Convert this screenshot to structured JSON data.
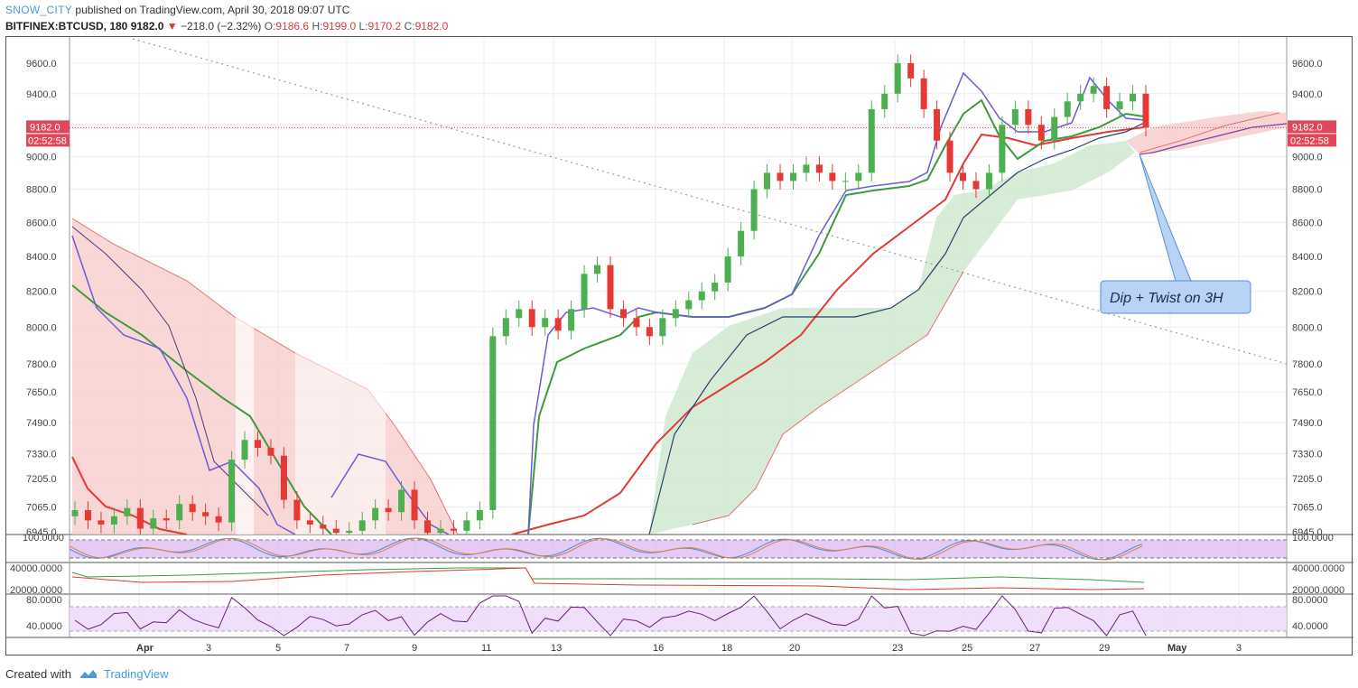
{
  "header": {
    "author": "SNOW_CITY",
    "published_text": "published on TradingView.com, April 30, 2018 09:07 UTC",
    "symbol": "BITFINEX:BTCUSD, 180",
    "last": "9182.0",
    "change": "−218.0 (−2.32%)",
    "o_label": "O:",
    "o_value": "9186.6",
    "h_label": "H:",
    "h_value": "9199.0",
    "l_label": "L:",
    "l_value": "9170.2",
    "c_label": "C:",
    "c_value": "9182.0"
  },
  "footer": {
    "created_with": "Created with",
    "brand": "TradingView"
  },
  "colors": {
    "up": "#4caf50",
    "down": "#e53935",
    "grid": "#e9eef2",
    "price_tag": "#e0485a",
    "annotation_fill": "#b8d3f5",
    "annotation_border": "#5b8fd1",
    "osc_band": "#d9b3f0"
  },
  "chart_data": {
    "type": "candlestick",
    "symbol": "BITFINEX:BTCUSD",
    "interval": "180",
    "price_axis": {
      "ticks": [
        9600.0,
        9400.0,
        9200.0,
        9000.0,
        8800.0,
        8600.0,
        8400.0,
        8200.0,
        8000.0,
        7800.0,
        7650.0,
        7490.0,
        7330.0,
        7205.0,
        7065.0,
        6945.0
      ],
      "tick_labels": [
        "9600.0",
        "9400.0",
        "9200.0",
        "9000.0",
        "8800.0",
        "8600.0",
        "8400.0",
        "8200.0",
        "8000.0",
        "7800.0",
        "7650.0",
        "7490.0",
        "7330.0",
        "7205.0",
        "7065.0",
        "6945.0"
      ],
      "scale": "log"
    },
    "last_price": {
      "label": "9182.0",
      "value": 9182.0
    },
    "countdown": {
      "label": "02:52:58"
    },
    "x_axis": {
      "labels": [
        "Apr",
        "3",
        "5",
        "7",
        "9",
        "11",
        "13",
        "16",
        "18",
        "20",
        "23",
        "25",
        "27",
        "29",
        "May",
        "3"
      ]
    },
    "series": [
      {
        "name": "price",
        "type": "candlestick",
        "closes_approx": [
          7050,
          7000,
          6980,
          7020,
          7060,
          6960,
          7010,
          7000,
          7080,
          7040,
          7020,
          6990,
          7300,
          7400,
          7360,
          7320,
          7100,
          7000,
          6980,
          6960,
          6940,
          6950,
          7000,
          7060,
          7040,
          7150,
          7000,
          6940,
          6960,
          6950,
          7000,
          7050,
          7950,
          8050,
          8100,
          8000,
          8050,
          7980,
          8100,
          8300,
          8350,
          8100,
          8050,
          8000,
          7950,
          8050,
          8100,
          8150,
          8200,
          8250,
          8400,
          8550,
          8800,
          8900,
          8850,
          8900,
          8950,
          8900,
          8850,
          8850,
          8900,
          9300,
          9400,
          9600,
          9500,
          9300,
          9100,
          8900,
          8850,
          8800,
          8900,
          9200,
          9300,
          9200,
          9100,
          9250,
          9350,
          9400,
          9450,
          9300,
          9350,
          9400,
          9182
        ]
      },
      {
        "name": "MA 8",
        "color": "#6b5bd6"
      },
      {
        "name": "MA 21",
        "color": "#3f9a3f"
      },
      {
        "name": "MA 55",
        "color": "#e53935"
      },
      {
        "name": "Cloud",
        "colors": [
          "#f5b7b7",
          "#b8e0b8"
        ]
      }
    ],
    "annotations": [
      {
        "text": "Dip + Twist on 3H",
        "type": "callout"
      }
    ],
    "sub_panes": [
      {
        "name": "stoch",
        "ticks": [
          "100.0000"
        ],
        "band": [
          20,
          80
        ]
      },
      {
        "name": "volume_osc",
        "ticks": [
          "40000.0000",
          "20000.0000"
        ]
      },
      {
        "name": "rsi",
        "ticks": [
          "80.0000",
          "40.0000"
        ]
      }
    ]
  }
}
